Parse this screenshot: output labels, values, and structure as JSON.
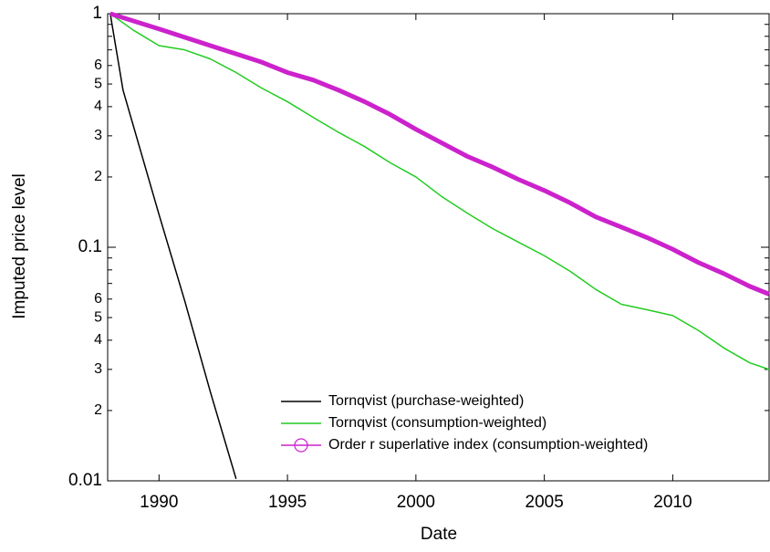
{
  "chart_data": {
    "type": "line",
    "log_y": true,
    "x_label": "Date",
    "y_label": "Imputed price level",
    "xlim": [
      1988,
      2013.75
    ],
    "ylim": [
      0.01,
      1
    ],
    "xticks": [
      1990,
      1995,
      2000,
      2005,
      2010
    ],
    "yticks": [
      0.01,
      {
        "value": 0.02,
        "label": "2"
      },
      {
        "value": 0.03,
        "label": "3"
      },
      {
        "value": 0.04,
        "label": "4"
      },
      {
        "value": 0.05,
        "label": "5"
      },
      {
        "value": 0.06,
        "label": "6"
      },
      0.1,
      {
        "value": 0.2,
        "label": "2"
      },
      {
        "value": 0.3,
        "label": "3"
      },
      {
        "value": 0.4,
        "label": "4"
      },
      {
        "value": 0.5,
        "label": "5"
      },
      {
        "value": 0.6,
        "label": "6"
      },
      1
    ],
    "yminorticks": [
      0.07,
      0.08,
      0.09,
      0.7,
      0.8,
      0.9
    ],
    "legend": "lower right",
    "series": [
      {
        "name": "Tornqvist (purchase-weighted)",
        "color": "#000000",
        "marker": "none",
        "x": [
          1988.1,
          1988.6,
          1990,
          1991,
          1992,
          1993
        ],
        "values": [
          1,
          0.47,
          0.138,
          0.059,
          0.024,
          0.0102
        ]
      },
      {
        "name": "Tornqvist (consumption-weighted)",
        "color": "#22cc22",
        "marker": "none",
        "x": [
          1988.1,
          1989,
          1990,
          1991,
          1992,
          1993,
          1994,
          1995,
          1996,
          1997,
          1998,
          1999,
          2000,
          2001,
          2002,
          2003,
          2004,
          2005,
          2006,
          2007,
          2008,
          2009,
          2010,
          2011,
          2012,
          2013,
          2013.75
        ],
        "values": [
          1,
          0.85,
          0.73,
          0.7,
          0.64,
          0.56,
          0.48,
          0.42,
          0.36,
          0.31,
          0.27,
          0.23,
          0.2,
          0.165,
          0.14,
          0.12,
          0.105,
          0.092,
          0.079,
          0.066,
          0.057,
          0.054,
          0.051,
          0.044,
          0.037,
          0.032,
          0.03
        ]
      },
      {
        "name": "Order r superlative index (consumption-weighted)",
        "color": "#cc22cc",
        "marker": "circle",
        "x": [
          1988.1,
          1990,
          1992,
          1994,
          1995,
          1996,
          1997,
          1998,
          1999,
          2000,
          2001,
          2002,
          2003,
          2004,
          2005,
          2006,
          2007,
          2008,
          2009,
          2010,
          2011,
          2012,
          2013,
          2013.75
        ],
        "values": [
          1,
          0.86,
          0.73,
          0.62,
          0.56,
          0.52,
          0.47,
          0.42,
          0.37,
          0.32,
          0.28,
          0.245,
          0.22,
          0.195,
          0.175,
          0.155,
          0.135,
          0.122,
          0.11,
          0.098,
          0.086,
          0.077,
          0.068,
          0.063
        ]
      }
    ]
  }
}
